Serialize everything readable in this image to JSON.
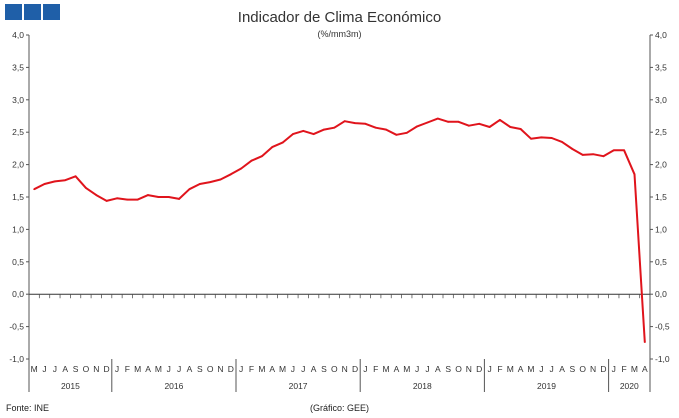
{
  "branding": {
    "logo_color": "#1f5fa8",
    "logo_icon": "three-blue-squares-logo"
  },
  "chart_data": {
    "type": "line",
    "title": "Indicador de Clima Económico",
    "subtitle": "(%/mm3m)",
    "ylim": [
      -1.0,
      4.0
    ],
    "yticks": [
      "4,0",
      "3,5",
      "3,0",
      "2,5",
      "2,0",
      "1,5",
      "1,0",
      "0,5",
      "0,0",
      "-0,5",
      "-1,0"
    ],
    "grid": false,
    "line_color": "#e0141c",
    "month_labels": [
      "M",
      "J",
      "J",
      "A",
      "S",
      "O",
      "N",
      "D",
      "J",
      "F",
      "M",
      "A",
      "M",
      "J",
      "J",
      "A",
      "S",
      "O",
      "N",
      "D",
      "J",
      "F",
      "M",
      "A",
      "M",
      "J",
      "J",
      "A",
      "S",
      "O",
      "N",
      "D",
      "J",
      "F",
      "M",
      "A",
      "M",
      "J",
      "J",
      "A",
      "S",
      "O",
      "N",
      "D",
      "J",
      "F",
      "M",
      "A",
      "M",
      "J",
      "J",
      "A",
      "S",
      "O",
      "N",
      "D",
      "J",
      "F",
      "M",
      "A"
    ],
    "years": [
      {
        "label": "2015",
        "start": 0,
        "count": 8
      },
      {
        "label": "2016",
        "start": 8,
        "count": 12
      },
      {
        "label": "2017",
        "start": 20,
        "count": 12
      },
      {
        "label": "2018",
        "start": 32,
        "count": 12
      },
      {
        "label": "2019",
        "start": 44,
        "count": 12
      },
      {
        "label": "2020",
        "start": 56,
        "count": 4
      }
    ],
    "series": [
      {
        "values": [
          1.62,
          1.7,
          1.74,
          1.76,
          1.82,
          1.64,
          1.53,
          1.44,
          1.48,
          1.46,
          1.46,
          1.53,
          1.5,
          1.5,
          1.47,
          1.62,
          1.7,
          1.73,
          1.77,
          1.85,
          1.94,
          2.06,
          2.13,
          2.27,
          2.34,
          2.47,
          2.52,
          2.47,
          2.54,
          2.57,
          2.67,
          2.64,
          2.63,
          2.57,
          2.54,
          2.46,
          2.49,
          2.59,
          2.65,
          2.71,
          2.66,
          2.66,
          2.6,
          2.63,
          2.58,
          2.69,
          2.58,
          2.55,
          2.4,
          2.42,
          2.41,
          2.35,
          2.24,
          2.15,
          2.16,
          2.13,
          2.22,
          2.22,
          1.85,
          -0.74
        ]
      }
    ]
  },
  "footer": {
    "source": "Fonte: INE",
    "credit": "(Gráfico: GEE)"
  }
}
